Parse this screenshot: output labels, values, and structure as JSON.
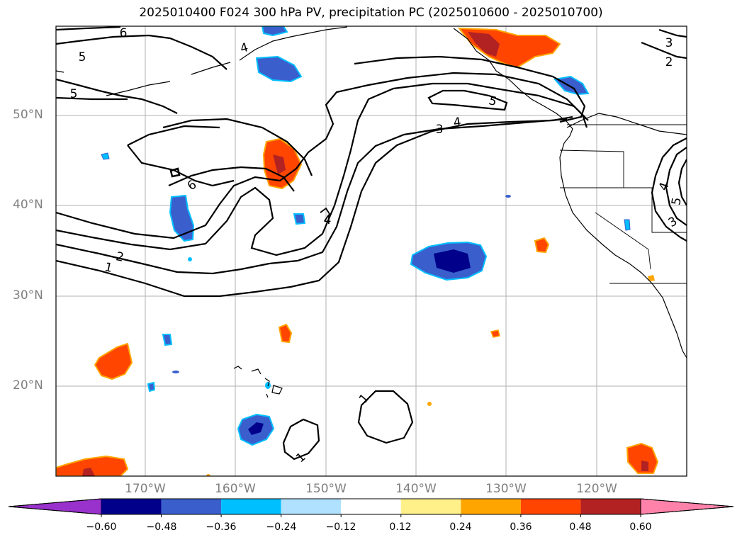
{
  "title": "2025010400 F024 300 hPa PV, precipitation PC (2025010600 - 2025010700)",
  "map": {
    "lat_labels": [
      "50°N",
      "40°N",
      "30°N",
      "20°N"
    ],
    "lon_labels": [
      "170°W",
      "160°W",
      "150°W",
      "140°W",
      "130°W",
      "120°W"
    ],
    "contour_labels": [
      "1",
      "2",
      "3",
      "4",
      "5",
      "6"
    ]
  },
  "colorbar": {
    "tick_labels": [
      "−0.60",
      "−0.48",
      "−0.36",
      "−0.24",
      "−0.12",
      "0.12",
      "0.24",
      "0.36",
      "0.48",
      "0.60"
    ],
    "colors": [
      "#9932cc",
      "#00008b",
      "#3a5fcd",
      "#00bfff",
      "#b0e2ff",
      "#ffffff",
      "#fff08a",
      "#ffa500",
      "#ff4500",
      "#b22222",
      "#ff82ab"
    ]
  }
}
